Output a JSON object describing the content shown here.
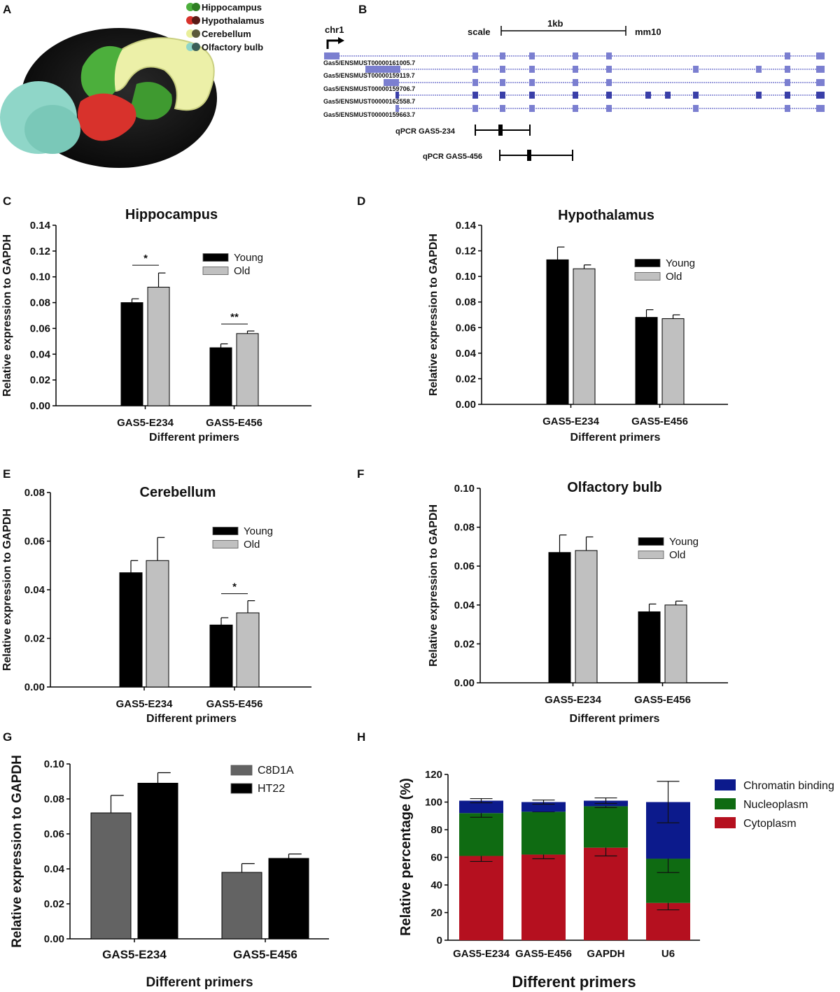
{
  "panel_labels": {
    "A": "A",
    "B": "B",
    "C": "C",
    "D": "D",
    "E": "E",
    "F": "F",
    "G": "G",
    "H": "H"
  },
  "panel_a": {
    "legend": [
      "Hippocampus",
      "Hypothalamus",
      "Cerebellum",
      "Olfactory bulb"
    ],
    "colors": {
      "hippocampus": "#4caf3c",
      "hypothalamus": "#d8322c",
      "cerebellum": "#e9ef9a",
      "olfactory": "#8fd6c8"
    }
  },
  "panel_b": {
    "chr": "chr1",
    "scale_label": "scale",
    "kb_label": "1kb",
    "assembly": "mm10",
    "transcripts": [
      "Gas5/ENSMUST00000161005.7",
      "Gas5/ENSMUST00000159119.7",
      "Gas5/ENSMUST00000159706.7",
      "Gas5/ENSMUST00000162558.7",
      "Gas5/ENSMUST00000159663.7"
    ],
    "qpcr1": "qPCR GAS5-234",
    "qpcr2": "qPCR GAS5-456"
  },
  "chart_data": [
    {
      "panel": "C",
      "type": "bar",
      "title": "Hippocampus",
      "xlabel": "Different primers",
      "ylabel": "Relative expression to GAPDH",
      "categories": [
        "GAS5-E234",
        "GAS5-E456"
      ],
      "ylim": [
        0,
        0.14
      ],
      "yticks": [
        "0.00",
        "0.02",
        "0.04",
        "0.06",
        "0.08",
        "0.10",
        "0.12",
        "0.14"
      ],
      "series": [
        {
          "name": "Young",
          "color": "#000000",
          "values": [
            0.08,
            0.045
          ],
          "errors": [
            0.003,
            0.003
          ]
        },
        {
          "name": "Old",
          "color": "#c0c0c0",
          "values": [
            0.092,
            0.056
          ],
          "errors": [
            0.011,
            0.002
          ]
        }
      ],
      "significance": [
        "*",
        "**"
      ]
    },
    {
      "panel": "D",
      "type": "bar",
      "title": "Hypothalamus",
      "xlabel": "Different primers",
      "ylabel": "Relative expression to GAPDH",
      "categories": [
        "GAS5-E234",
        "GAS5-E456"
      ],
      "ylim": [
        0,
        0.14
      ],
      "yticks": [
        "0.00",
        "0.02",
        "0.04",
        "0.06",
        "0.08",
        "0.10",
        "0.12",
        "0.14"
      ],
      "series": [
        {
          "name": "Young",
          "color": "#000000",
          "values": [
            0.113,
            0.068
          ],
          "errors": [
            0.01,
            0.006
          ]
        },
        {
          "name": "Old",
          "color": "#c0c0c0",
          "values": [
            0.106,
            0.067
          ],
          "errors": [
            0.003,
            0.003
          ]
        }
      ],
      "significance": [
        "",
        ""
      ]
    },
    {
      "panel": "E",
      "type": "bar",
      "title": "Cerebellum",
      "xlabel": "Different primers",
      "ylabel": "Relative expression to GAPDH",
      "categories": [
        "GAS5-E234",
        "GAS5-E456"
      ],
      "ylim": [
        0,
        0.08
      ],
      "yticks": [
        "0.00",
        "0.02",
        "0.04",
        "0.06",
        "0.08"
      ],
      "series": [
        {
          "name": "Young",
          "color": "#000000",
          "values": [
            0.047,
            0.0255
          ],
          "errors": [
            0.005,
            0.003
          ]
        },
        {
          "name": "Old",
          "color": "#c0c0c0",
          "values": [
            0.052,
            0.0305
          ],
          "errors": [
            0.0095,
            0.005
          ]
        }
      ],
      "significance": [
        "",
        "*"
      ]
    },
    {
      "panel": "F",
      "type": "bar",
      "title": "Olfactory bulb",
      "xlabel": "Different primers",
      "ylabel": "Relative expression to GAPDH",
      "categories": [
        "GAS5-E234",
        "GAS5-E456"
      ],
      "ylim": [
        0,
        0.1
      ],
      "yticks": [
        "0.00",
        "0.02",
        "0.04",
        "0.06",
        "0.08",
        "0.10"
      ],
      "series": [
        {
          "name": "Young",
          "color": "#000000",
          "values": [
            0.067,
            0.0365
          ],
          "errors": [
            0.009,
            0.004
          ]
        },
        {
          "name": "Old",
          "color": "#c0c0c0",
          "values": [
            0.068,
            0.04
          ],
          "errors": [
            0.007,
            0.002
          ]
        }
      ],
      "significance": [
        "",
        ""
      ]
    },
    {
      "panel": "G",
      "type": "bar",
      "title": "",
      "xlabel": "Different primers",
      "ylabel": "Relative expression to GAPDH",
      "categories": [
        "GAS5-E234",
        "GAS5-E456"
      ],
      "ylim": [
        0,
        0.1
      ],
      "yticks": [
        "0.00",
        "0.02",
        "0.04",
        "0.06",
        "0.08",
        "0.10"
      ],
      "series": [
        {
          "name": "C8D1A",
          "color": "#636363",
          "values": [
            0.072,
            0.038
          ],
          "errors": [
            0.01,
            0.005
          ]
        },
        {
          "name": "HT22",
          "color": "#000000",
          "values": [
            0.089,
            0.046
          ],
          "errors": [
            0.006,
            0.0025
          ]
        }
      ],
      "significance": [
        "",
        ""
      ]
    },
    {
      "panel": "H",
      "type": "stacked_bar",
      "title": "",
      "xlabel": "Different primers",
      "ylabel": "Relative percentage (%)",
      "categories": [
        "GAS5-E234",
        "GAS5-E456",
        "GAPDH",
        "U6"
      ],
      "ylim": [
        0,
        120
      ],
      "yticks": [
        "0",
        "20",
        "40",
        "60",
        "80",
        "100",
        "120"
      ],
      "series": [
        {
          "name": "Cytoplasm",
          "color": "#b5101f",
          "values": [
            61,
            62,
            67,
            27
          ],
          "errors": [
            4,
            3,
            6,
            5
          ]
        },
        {
          "name": "Nucleoplasm",
          "color": "#0f6b12",
          "values": [
            31,
            31,
            30,
            32
          ],
          "errors": [
            3,
            0,
            1,
            10
          ]
        },
        {
          "name": "Chromatin binding",
          "color": "#0c1a8c",
          "values": [
            9,
            7,
            4,
            41
          ],
          "errors": [
            1.5,
            1.5,
            2,
            15
          ]
        }
      ]
    }
  ]
}
